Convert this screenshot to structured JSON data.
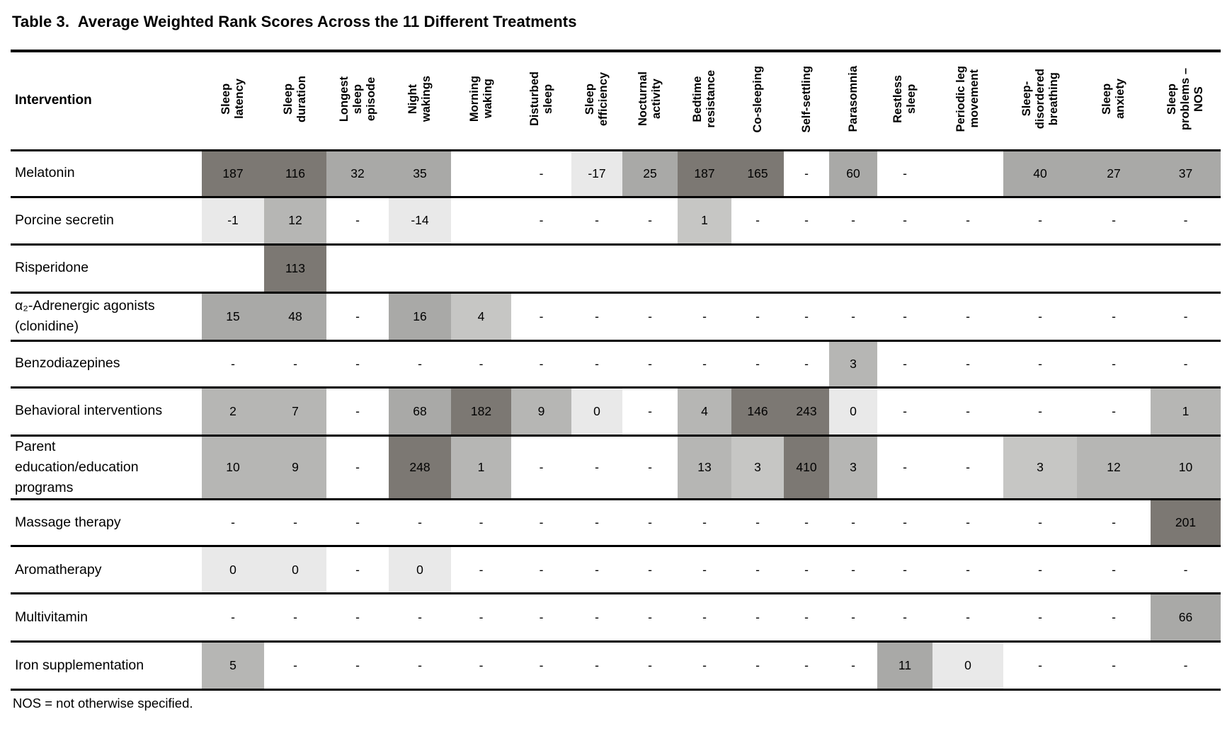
{
  "title": "Table 3.  Average Weighted Rank Scores Across the 11 Different Treatments",
  "footnote": "NOS = not otherwise specified.",
  "shades": {
    "0": "transparent",
    "1": "#e9e9e9",
    "2": "#c6c6c4",
    "3": "#b6b6b4",
    "4": "#a9a9a7",
    "5": "#7c7873"
  },
  "table": {
    "row_header_label": "Intervention",
    "columns": [
      "Sleep\nlatency",
      "Sleep\nduration",
      "Longest\nsleep\nepisode",
      "Night\nwakings",
      "Morning\nwaking",
      "Disturbed\nsleep",
      "Sleep\nefficiency",
      "Nocturnal\nactivity",
      "Bedtime\nresistance",
      "Co-sleeping",
      "Self-settling",
      "Parasomnia",
      "Restless\nsleep",
      "Periodic leg\nmovement",
      "Sleep-\ndisordered\nbreathing",
      "Sleep\nanxiety",
      "Sleep\nproblems –\nNOS"
    ],
    "rows": [
      {
        "label": "Melatonin",
        "cells": [
          {
            "v": "187",
            "s": 5
          },
          {
            "v": "116",
            "s": 5
          },
          {
            "v": "32",
            "s": 4
          },
          {
            "v": "35",
            "s": 4
          },
          {
            "v": "",
            "s": 0
          },
          {
            "v": "-",
            "s": 0
          },
          {
            "v": "-17",
            "s": 1
          },
          {
            "v": "25",
            "s": 4
          },
          {
            "v": "187",
            "s": 5
          },
          {
            "v": "165",
            "s": 5
          },
          {
            "v": "-",
            "s": 0
          },
          {
            "v": "60",
            "s": 4
          },
          {
            "v": "-",
            "s": 0
          },
          {
            "v": "",
            "s": 0
          },
          {
            "v": "40",
            "s": 4
          },
          {
            "v": "27",
            "s": 4
          },
          {
            "v": "37",
            "s": 4
          }
        ]
      },
      {
        "label": "Porcine secretin",
        "cells": [
          {
            "v": "-1",
            "s": 1
          },
          {
            "v": "12",
            "s": 3
          },
          {
            "v": "-",
            "s": 0
          },
          {
            "v": "-14",
            "s": 1
          },
          {
            "v": "",
            "s": 0
          },
          {
            "v": "-",
            "s": 0
          },
          {
            "v": "-",
            "s": 0
          },
          {
            "v": "-",
            "s": 0
          },
          {
            "v": "1",
            "s": 2
          },
          {
            "v": "-",
            "s": 0
          },
          {
            "v": "-",
            "s": 0
          },
          {
            "v": "-",
            "s": 0
          },
          {
            "v": "-",
            "s": 0
          },
          {
            "v": "-",
            "s": 0
          },
          {
            "v": "-",
            "s": 0
          },
          {
            "v": "-",
            "s": 0
          },
          {
            "v": "-",
            "s": 0
          }
        ]
      },
      {
        "label": "Risperidone",
        "cells": [
          {
            "v": "",
            "s": 0
          },
          {
            "v": "113",
            "s": 5
          },
          {
            "v": "",
            "s": 0
          },
          {
            "v": "",
            "s": 0
          },
          {
            "v": "",
            "s": 0
          },
          {
            "v": "",
            "s": 0
          },
          {
            "v": "",
            "s": 0
          },
          {
            "v": "",
            "s": 0
          },
          {
            "v": "",
            "s": 0
          },
          {
            "v": "",
            "s": 0
          },
          {
            "v": "",
            "s": 0
          },
          {
            "v": "",
            "s": 0
          },
          {
            "v": "",
            "s": 0
          },
          {
            "v": "",
            "s": 0
          },
          {
            "v": "",
            "s": 0
          },
          {
            "v": "",
            "s": 0
          },
          {
            "v": "",
            "s": 0
          }
        ]
      },
      {
        "label": "α₂-Adrenergic agonists\n(clonidine)",
        "cells": [
          {
            "v": "15",
            "s": 4
          },
          {
            "v": "48",
            "s": 4
          },
          {
            "v": "-",
            "s": 0
          },
          {
            "v": "16",
            "s": 4
          },
          {
            "v": "4",
            "s": 2
          },
          {
            "v": "-",
            "s": 0
          },
          {
            "v": "-",
            "s": 0
          },
          {
            "v": "-",
            "s": 0
          },
          {
            "v": "-",
            "s": 0
          },
          {
            "v": "-",
            "s": 0
          },
          {
            "v": "-",
            "s": 0
          },
          {
            "v": "-",
            "s": 0
          },
          {
            "v": "-",
            "s": 0
          },
          {
            "v": "-",
            "s": 0
          },
          {
            "v": "-",
            "s": 0
          },
          {
            "v": "-",
            "s": 0
          },
          {
            "v": "-",
            "s": 0
          }
        ]
      },
      {
        "label": "Benzodiazepines",
        "cells": [
          {
            "v": "-",
            "s": 0
          },
          {
            "v": "-",
            "s": 0
          },
          {
            "v": "-",
            "s": 0
          },
          {
            "v": "-",
            "s": 0
          },
          {
            "v": "-",
            "s": 0
          },
          {
            "v": "-",
            "s": 0
          },
          {
            "v": "-",
            "s": 0
          },
          {
            "v": "-",
            "s": 0
          },
          {
            "v": "-",
            "s": 0
          },
          {
            "v": "-",
            "s": 0
          },
          {
            "v": "-",
            "s": 0
          },
          {
            "v": "3",
            "s": 3
          },
          {
            "v": "-",
            "s": 0
          },
          {
            "v": "-",
            "s": 0
          },
          {
            "v": "-",
            "s": 0
          },
          {
            "v": "-",
            "s": 0
          },
          {
            "v": "-",
            "s": 0
          }
        ]
      },
      {
        "label": "Behavioral interventions",
        "cells": [
          {
            "v": "2",
            "s": 3
          },
          {
            "v": "7",
            "s": 3
          },
          {
            "v": "-",
            "s": 0
          },
          {
            "v": "68",
            "s": 4
          },
          {
            "v": "182",
            "s": 5
          },
          {
            "v": "9",
            "s": 3
          },
          {
            "v": "0",
            "s": 1
          },
          {
            "v": "-",
            "s": 0
          },
          {
            "v": "4",
            "s": 3
          },
          {
            "v": "146",
            "s": 5
          },
          {
            "v": "243",
            "s": 5
          },
          {
            "v": "0",
            "s": 1
          },
          {
            "v": "-",
            "s": 0
          },
          {
            "v": "-",
            "s": 0
          },
          {
            "v": "-",
            "s": 0
          },
          {
            "v": "-",
            "s": 0
          },
          {
            "v": "1",
            "s": 3
          }
        ]
      },
      {
        "label": "Parent\neducation/education\nprograms",
        "cells": [
          {
            "v": "10",
            "s": 3
          },
          {
            "v": "9",
            "s": 3
          },
          {
            "v": "-",
            "s": 0
          },
          {
            "v": "248",
            "s": 5
          },
          {
            "v": "1",
            "s": 3
          },
          {
            "v": "-",
            "s": 0
          },
          {
            "v": "-",
            "s": 0
          },
          {
            "v": "-",
            "s": 0
          },
          {
            "v": "13",
            "s": 3
          },
          {
            "v": "3",
            "s": 2
          },
          {
            "v": "410",
            "s": 5
          },
          {
            "v": "3",
            "s": 3
          },
          {
            "v": "-",
            "s": 0
          },
          {
            "v": "-",
            "s": 0
          },
          {
            "v": "3",
            "s": 2
          },
          {
            "v": "12",
            "s": 3
          },
          {
            "v": "10",
            "s": 3
          }
        ]
      },
      {
        "label": "Massage therapy",
        "cells": [
          {
            "v": "-",
            "s": 0
          },
          {
            "v": "-",
            "s": 0
          },
          {
            "v": "-",
            "s": 0
          },
          {
            "v": "-",
            "s": 0
          },
          {
            "v": "-",
            "s": 0
          },
          {
            "v": "-",
            "s": 0
          },
          {
            "v": "-",
            "s": 0
          },
          {
            "v": "-",
            "s": 0
          },
          {
            "v": "-",
            "s": 0
          },
          {
            "v": "-",
            "s": 0
          },
          {
            "v": "-",
            "s": 0
          },
          {
            "v": "-",
            "s": 0
          },
          {
            "v": "-",
            "s": 0
          },
          {
            "v": "-",
            "s": 0
          },
          {
            "v": "-",
            "s": 0
          },
          {
            "v": "-",
            "s": 0
          },
          {
            "v": "201",
            "s": 5
          }
        ]
      },
      {
        "label": "Aromatherapy",
        "cells": [
          {
            "v": "0",
            "s": 1
          },
          {
            "v": "0",
            "s": 1
          },
          {
            "v": "-",
            "s": 0
          },
          {
            "v": "0",
            "s": 1
          },
          {
            "v": "-",
            "s": 0
          },
          {
            "v": "-",
            "s": 0
          },
          {
            "v": "-",
            "s": 0
          },
          {
            "v": "-",
            "s": 0
          },
          {
            "v": "-",
            "s": 0
          },
          {
            "v": "-",
            "s": 0
          },
          {
            "v": "-",
            "s": 0
          },
          {
            "v": "-",
            "s": 0
          },
          {
            "v": "-",
            "s": 0
          },
          {
            "v": "-",
            "s": 0
          },
          {
            "v": "-",
            "s": 0
          },
          {
            "v": "-",
            "s": 0
          },
          {
            "v": "-",
            "s": 0
          }
        ]
      },
      {
        "label": "Multivitamin",
        "cells": [
          {
            "v": "-",
            "s": 0
          },
          {
            "v": "-",
            "s": 0
          },
          {
            "v": "-",
            "s": 0
          },
          {
            "v": "-",
            "s": 0
          },
          {
            "v": "-",
            "s": 0
          },
          {
            "v": "-",
            "s": 0
          },
          {
            "v": "-",
            "s": 0
          },
          {
            "v": "-",
            "s": 0
          },
          {
            "v": "-",
            "s": 0
          },
          {
            "v": "-",
            "s": 0
          },
          {
            "v": "-",
            "s": 0
          },
          {
            "v": "-",
            "s": 0
          },
          {
            "v": "-",
            "s": 0
          },
          {
            "v": "-",
            "s": 0
          },
          {
            "v": "-",
            "s": 0
          },
          {
            "v": "-",
            "s": 0
          },
          {
            "v": "66",
            "s": 4
          }
        ]
      },
      {
        "label": "Iron supplementation",
        "cells": [
          {
            "v": "5",
            "s": 3
          },
          {
            "v": "-",
            "s": 0
          },
          {
            "v": "-",
            "s": 0
          },
          {
            "v": "-",
            "s": 0
          },
          {
            "v": "-",
            "s": 0
          },
          {
            "v": "-",
            "s": 0
          },
          {
            "v": "-",
            "s": 0
          },
          {
            "v": "-",
            "s": 0
          },
          {
            "v": "-",
            "s": 0
          },
          {
            "v": "-",
            "s": 0
          },
          {
            "v": "-",
            "s": 0
          },
          {
            "v": "-",
            "s": 0
          },
          {
            "v": "11",
            "s": 4
          },
          {
            "v": "0",
            "s": 1
          },
          {
            "v": "-",
            "s": 0
          },
          {
            "v": "-",
            "s": 0
          },
          {
            "v": "-",
            "s": 0
          }
        ]
      }
    ]
  }
}
